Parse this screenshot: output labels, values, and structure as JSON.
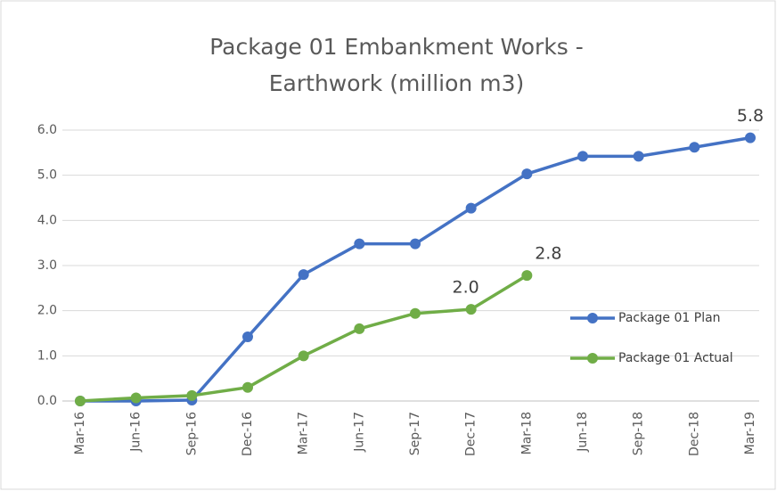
{
  "chart_data": {
    "type": "line",
    "title": [
      "Package 01 Embankment  Works -",
      "Earthwork (million m3)"
    ],
    "categories": [
      "Mar-16",
      "Jun-16",
      "Sep-16",
      "Dec-16",
      "Mar-17",
      "Jun-17",
      "Sep-17",
      "Dec-17",
      "Mar-18",
      "Jun-18",
      "Sep-18",
      "Dec-18",
      "Mar-19"
    ],
    "series": [
      {
        "name": "Package 01 Plan",
        "color": "#4472c4",
        "values": [
          0,
          0,
          0.02,
          1.42,
          2.8,
          3.48,
          3.48,
          4.27,
          5.03,
          5.42,
          5.42,
          5.62,
          5.83
        ],
        "value_labels": [
          null,
          null,
          null,
          null,
          null,
          null,
          null,
          null,
          null,
          null,
          null,
          null,
          "5.8"
        ]
      },
      {
        "name": "Package 01 Actual",
        "color": "#70ad47",
        "values": [
          0,
          0.07,
          0.12,
          0.3,
          1.0,
          1.6,
          1.94,
          2.03,
          2.78,
          null,
          null,
          null,
          null
        ],
        "value_labels": [
          null,
          null,
          null,
          null,
          null,
          null,
          null,
          "2.0",
          "2.8",
          null,
          null,
          null,
          null
        ]
      }
    ],
    "ylim": [
      0,
      6
    ],
    "yticks": [
      {
        "value": 0,
        "label": "0.0"
      },
      {
        "value": 1,
        "label": "1.0"
      },
      {
        "value": 2,
        "label": "2.0"
      },
      {
        "value": 3,
        "label": "3.0"
      },
      {
        "value": 4,
        "label": "4.0"
      },
      {
        "value": 5,
        "label": "5.0"
      },
      {
        "value": 6,
        "label": "6.0"
      }
    ],
    "grid": true,
    "legend": "right"
  }
}
